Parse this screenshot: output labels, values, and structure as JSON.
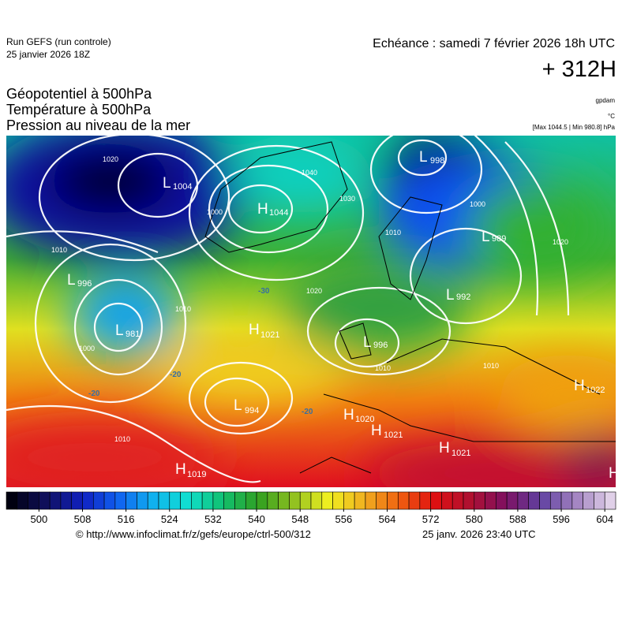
{
  "header": {
    "run": "Run GEFS (run controle)",
    "run_date": "25 janvier 2026 18Z",
    "valid": "Echéance : samedi 7 février 2026 18h UTC",
    "lead": "+ 312H",
    "titles": [
      "Géopotentiel à 500hPa",
      "Température à 500hPa",
      "Pression au niveau de la mer"
    ],
    "unit_geo": "gpdam",
    "unit_temp": "°C",
    "pressure_range": "[Max 1044.5 | Min 980.8] hPa"
  },
  "centers": [
    {
      "type": "L",
      "value": 1004
    },
    {
      "type": "H",
      "value": 1044
    },
    {
      "type": "L",
      "value": 998
    },
    {
      "type": "L",
      "value": 996
    },
    {
      "type": "L",
      "value": 981
    },
    {
      "type": "H",
      "value": 1021
    },
    {
      "type": "L",
      "value": 989
    },
    {
      "type": "L",
      "value": 992
    },
    {
      "type": "L",
      "value": 996
    },
    {
      "type": "L",
      "value": 994
    },
    {
      "type": "H",
      "value": 1020
    },
    {
      "type": "H",
      "value": 1021
    },
    {
      "type": "H",
      "value": 1021
    },
    {
      "type": "H",
      "value": 1019
    },
    {
      "type": "H",
      "value": 1022
    },
    {
      "type": "H",
      "value": null
    }
  ],
  "isobar_labels": [
    1020,
    1010,
    1030,
    1040,
    1000,
    1010,
    1000,
    1020,
    1010,
    1010,
    1010,
    1020,
    1010,
    1000
  ],
  "temp_labels": [
    -30,
    -20,
    -20,
    -20
  ],
  "colorbar": {
    "lim": [
      494,
      606
    ],
    "step": 2,
    "ticks": [
      500,
      508,
      516,
      524,
      532,
      540,
      548,
      556,
      564,
      572,
      580,
      588,
      596,
      604
    ],
    "colors": [
      "#000010",
      "#101060",
      "#1020c0",
      "#1060f0",
      "#10b0f0",
      "#10e0d0",
      "#10c070",
      "#30a020",
      "#90c020",
      "#f0f020",
      "#f0b020",
      "#f06010",
      "#e01010",
      "#b01030",
      "#801060",
      "#6040a0",
      "#a080c0",
      "#e0d0e8"
    ]
  },
  "footer": {
    "url": "© http://www.infoclimat.fr/z/gefs/europe/ctrl-500/312",
    "generated": "25 janv. 2026 23:40 UTC"
  }
}
